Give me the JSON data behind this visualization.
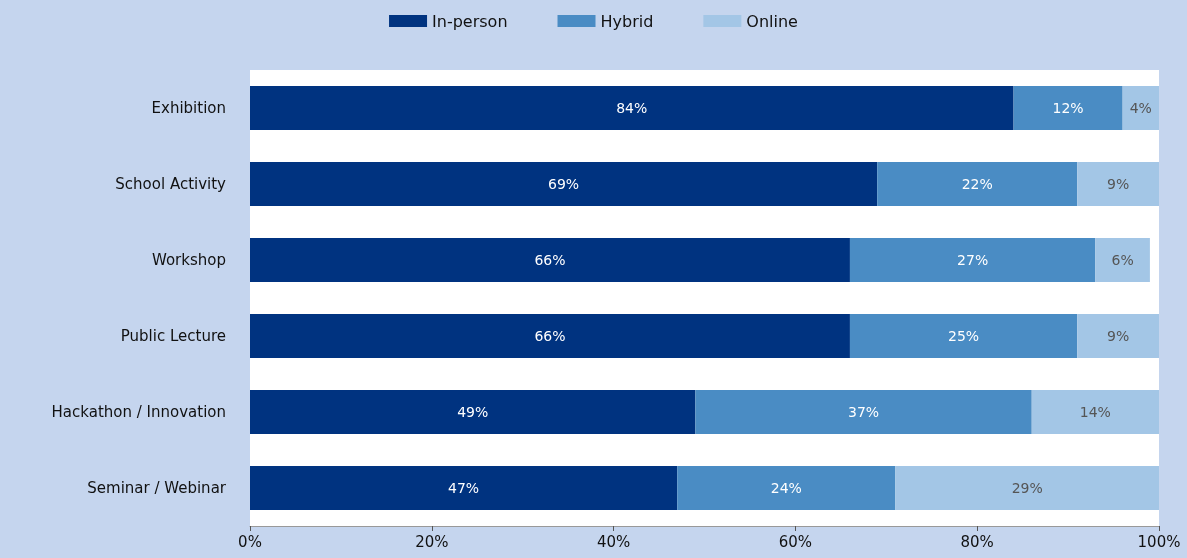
{
  "chart_data": {
    "type": "bar",
    "orientation": "horizontal",
    "stacked": true,
    "legend": "top",
    "grid": false,
    "categories": [
      "Exhibition",
      "School Activity",
      "Workshop",
      "Public Lecture",
      "Hackathon / Innovation",
      "Seminar / Webinar"
    ],
    "xlim": [
      0,
      100
    ],
    "xticks": [
      {
        "value": 0,
        "label": "0%"
      },
      {
        "value": 20,
        "label": "20%"
      },
      {
        "value": 40,
        "label": "40%"
      },
      {
        "value": 60,
        "label": "60%"
      },
      {
        "value": 80,
        "label": "80%"
      },
      {
        "value": 100,
        "label": "100%"
      }
    ],
    "series": [
      {
        "name": "In-person",
        "color": "#003380",
        "values": [
          84,
          69,
          66,
          66,
          49,
          47
        ],
        "value_labels": [
          "84%",
          "69%",
          "66%",
          "66%",
          "49%",
          "47%"
        ]
      },
      {
        "name": "Hybrid",
        "color": "#4a8cc4",
        "values": [
          12,
          22,
          27,
          25,
          37,
          24
        ],
        "value_labels": [
          "12%",
          "22%",
          "27%",
          "25%",
          "37%",
          "24%"
        ]
      },
      {
        "name": "Online",
        "color": "#a3c6e6",
        "values": [
          4,
          9,
          6,
          9,
          14,
          29
        ],
        "value_labels": [
          "4%",
          "9%",
          "6%",
          "9%",
          "14%",
          "29%"
        ]
      }
    ]
  }
}
